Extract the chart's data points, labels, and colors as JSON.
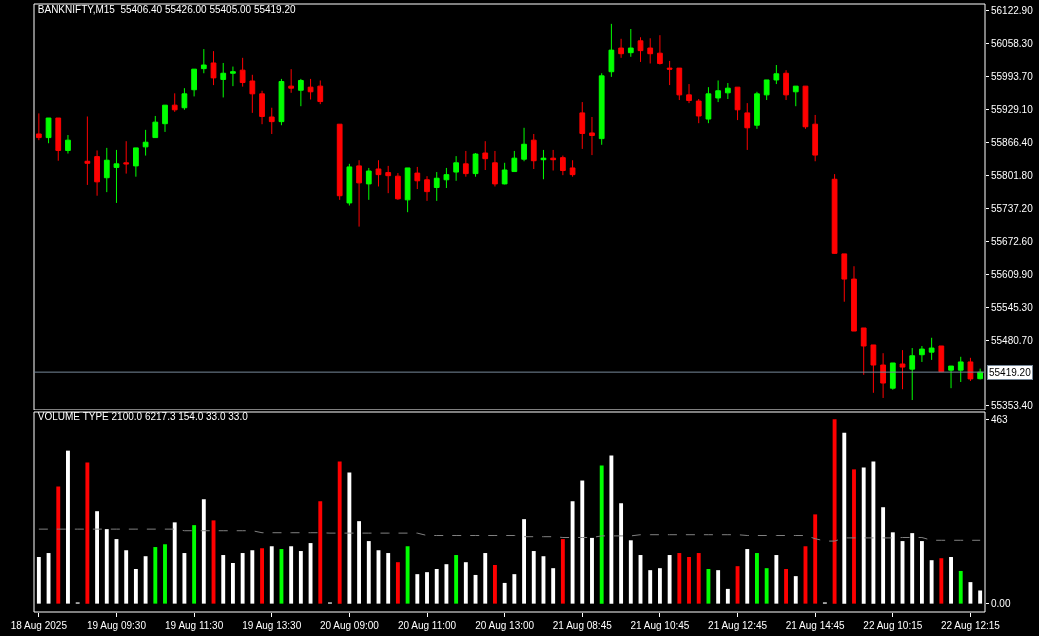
{
  "chart_data": [
    {
      "type": "candlestick",
      "title": "BANKNIFTY,M15  55406.40 55426.00 55405.00 55419.20",
      "categories": [
        null,
        null,
        null,
        null,
        null,
        null,
        null,
        null,
        null,
        null,
        null,
        null,
        null,
        null,
        null,
        null,
        null,
        null,
        null,
        null,
        null,
        null,
        null,
        null,
        null,
        null,
        null,
        null,
        null,
        null,
        null,
        null,
        null,
        null,
        null,
        null,
        null,
        null,
        null,
        null,
        null,
        null,
        null,
        null,
        null,
        null,
        null,
        null,
        null,
        null,
        null,
        null,
        null,
        null,
        null,
        null,
        null,
        null,
        null,
        null,
        null,
        null,
        null,
        null,
        null,
        null,
        null,
        null,
        null,
        null,
        null,
        null,
        null,
        null,
        null,
        null,
        null,
        null,
        null,
        null,
        null,
        null,
        null,
        null,
        null,
        null,
        null,
        null,
        null,
        null,
        null,
        null,
        null,
        null,
        null,
        null,
        null,
        null
      ],
      "ohlc": [
        [
          55882,
          55922,
          55870,
          55875
        ],
        [
          55875,
          55913,
          55864,
          55913
        ],
        [
          55913,
          55913,
          55830,
          55850
        ],
        [
          55850,
          55880,
          55844,
          55870
        ],
        null,
        [
          55829,
          55916,
          55783,
          55825
        ],
        [
          55838,
          55850,
          55762,
          55789
        ],
        [
          55797,
          55855,
          55769,
          55831
        ],
        [
          55817,
          55851,
          55748,
          55824
        ],
        [
          55826,
          55868,
          55805,
          55824
        ],
        [
          55820,
          55855,
          55799,
          55855
        ],
        [
          55857,
          55890,
          55840,
          55866
        ],
        [
          55875,
          55917,
          55875,
          55905
        ],
        [
          55902,
          55938,
          55886,
          55938
        ],
        [
          55938,
          55961,
          55925,
          55929
        ],
        [
          55933,
          55971,
          55929,
          55960
        ],
        [
          55968,
          56008,
          55955,
          56008
        ],
        [
          56009,
          56047,
          56000,
          56016
        ],
        [
          56020,
          56043,
          55977,
          55991
        ],
        [
          55988,
          56020,
          55953,
          56000
        ],
        [
          56000,
          56013,
          55975,
          56003
        ],
        [
          56006,
          56030,
          55974,
          55982
        ],
        [
          55985,
          55997,
          55923,
          55960
        ],
        [
          55960,
          55966,
          55901,
          55916
        ],
        [
          55915,
          55933,
          55882,
          55906
        ],
        [
          55906,
          55989,
          55899,
          55984
        ],
        [
          55975,
          56008,
          55962,
          55971
        ],
        [
          55967,
          55989,
          55936,
          55986
        ],
        [
          55973,
          55989,
          55949,
          55964
        ],
        [
          55975,
          55986,
          55940,
          55945
        ],
        null,
        [
          55901,
          55901,
          55754,
          55762
        ],
        [
          55748,
          55824,
          55743,
          55818
        ],
        [
          55820,
          55831,
          55702,
          55787
        ],
        [
          55785,
          55816,
          55754,
          55810
        ],
        [
          55814,
          55831,
          55780,
          55803
        ],
        [
          55807,
          55820,
          55767,
          55801
        ],
        [
          55800,
          55806,
          55754,
          55756
        ],
        [
          55754,
          55816,
          55730,
          55816
        ],
        [
          55806,
          55818,
          55775,
          55791
        ],
        [
          55793,
          55800,
          55752,
          55770
        ],
        [
          55778,
          55808,
          55752,
          55796
        ],
        [
          55793,
          55816,
          55777,
          55803
        ],
        [
          55808,
          55839,
          55791,
          55826
        ],
        [
          55824,
          55849,
          55799,
          55805
        ],
        [
          55805,
          55845,
          55799,
          55843
        ],
        [
          55845,
          55868,
          55812,
          55834
        ],
        [
          55826,
          55849,
          55780,
          55785
        ],
        [
          55785,
          55826,
          55784,
          55812
        ],
        [
          55809,
          55849,
          55809,
          55835
        ],
        [
          55833,
          55894,
          55829,
          55862
        ],
        [
          55870,
          55882,
          55814,
          55830
        ],
        [
          55832,
          55851,
          55794,
          55835
        ],
        [
          55835,
          55851,
          55811,
          55832
        ],
        [
          55836,
          55840,
          55802,
          55811
        ],
        [
          55816,
          55831,
          55799,
          55803
        ],
        [
          55923,
          55944,
          55853,
          55883
        ],
        [
          55884,
          55915,
          55841,
          55879
        ],
        [
          55873,
          56000,
          55861,
          55995
        ],
        [
          56003,
          56096,
          55993,
          56045
        ],
        [
          56049,
          56067,
          56030,
          56038
        ],
        [
          56040,
          56086,
          56032,
          56049
        ],
        [
          56063,
          56070,
          56022,
          56044
        ],
        [
          56049,
          56068,
          56019,
          56038
        ],
        [
          56039,
          56074,
          56017,
          56019
        ],
        [
          56010,
          56024,
          55977,
          56008
        ],
        [
          56010,
          56010,
          55948,
          55958
        ],
        [
          55958,
          55979,
          55942,
          55947
        ],
        [
          55946,
          55950,
          55903,
          55917
        ],
        [
          55911,
          55973,
          55903,
          55960
        ],
        [
          55952,
          55986,
          55944,
          55966
        ],
        [
          55962,
          55981,
          55950,
          55971
        ],
        [
          55973,
          55973,
          55909,
          55929
        ],
        [
          55923,
          55942,
          55851,
          55894
        ],
        [
          55899,
          55964,
          55892,
          55960
        ],
        [
          55958,
          55987,
          55948,
          55987
        ],
        [
          55987,
          56016,
          55979,
          55999
        ],
        [
          56000,
          56006,
          55948,
          55958
        ],
        [
          55964,
          55975,
          55936,
          55975
        ],
        [
          55975,
          55975,
          55892,
          55896
        ],
        [
          55901,
          55919,
          55829,
          55841
        ],
        null,
        [
          55794,
          55804,
          55649,
          55650
        ],
        [
          55649,
          55649,
          55556,
          55600
        ],
        [
          55600,
          55625,
          55499,
          55499
        ],
        [
          55505,
          55505,
          55414,
          55470
        ],
        [
          55472,
          55472,
          55379,
          55433
        ],
        [
          55433,
          55456,
          55369,
          55398
        ],
        [
          55388,
          55437,
          55385,
          55437
        ],
        [
          55435,
          55462,
          55386,
          55429
        ],
        [
          55425,
          55466,
          55365,
          55451
        ],
        [
          55453,
          55470,
          55439,
          55464
        ],
        [
          55458,
          55486,
          55443,
          55466
        ],
        [
          55470,
          55470,
          55420,
          55420
        ],
        [
          55423,
          55431,
          55388,
          55431
        ],
        [
          55423,
          55449,
          55400,
          55439
        ],
        [
          55439,
          55447,
          55402,
          55406
        ],
        [
          55406.4,
          55426,
          55405,
          55419.2
        ]
      ],
      "colors": [
        "#ff0000",
        "#00ff00",
        "#ff0000",
        "#00ff00",
        null,
        "#ff0000",
        "#ff0000",
        "#00ff00",
        "#00ff00",
        "#ff0000",
        "#00ff00",
        "#00ff00",
        "#00ff00",
        "#00ff00",
        "#ff0000",
        "#00ff00",
        "#00ff00",
        "#00ff00",
        "#ff0000",
        "#00ff00",
        "#00ff00",
        "#ff0000",
        "#ff0000",
        "#ff0000",
        "#ff0000",
        "#00ff00",
        "#ff0000",
        "#00ff00",
        "#ff0000",
        "#ff0000",
        null,
        "#ff0000",
        "#00ff00",
        "#ff0000",
        "#00ff00",
        "#ff0000",
        "#ff0000",
        "#ff0000",
        "#00ff00",
        "#ff0000",
        "#ff0000",
        "#00ff00",
        "#00ff00",
        "#00ff00",
        "#ff0000",
        "#00ff00",
        "#ff0000",
        "#ff0000",
        "#00ff00",
        "#00ff00",
        "#00ff00",
        "#ff0000",
        "#00ff00",
        "#ff0000",
        "#ff0000",
        "#ff0000",
        "#ff0000",
        "#ff0000",
        "#00ff00",
        "#00ff00",
        "#ff0000",
        "#00ff00",
        "#ff0000",
        "#ff0000",
        "#ff0000",
        "#ff0000",
        "#ff0000",
        "#ff0000",
        "#ff0000",
        "#00ff00",
        "#00ff00",
        "#00ff00",
        "#ff0000",
        "#ff0000",
        "#00ff00",
        "#00ff00",
        "#00ff00",
        "#ff0000",
        "#00ff00",
        "#ff0000",
        "#ff0000",
        null,
        "#ff0000",
        "#ff0000",
        "#ff0000",
        "#ff0000",
        "#ff0000",
        "#ff0000",
        "#00ff00",
        "#ff0000",
        "#00ff00",
        "#00ff00",
        "#00ff00",
        "#ff0000",
        "#00ff00",
        "#00ff00",
        "#ff0000",
        "#00ff00"
      ],
      "ylim": [
        55345.6,
        56134.6
      ],
      "yticks": [
        {
          "value": 56122.9,
          "label": "56122.90"
        },
        {
          "value": 56058.3,
          "label": "56058.30"
        },
        {
          "value": 55993.7,
          "label": "55993.70"
        },
        {
          "value": 55929.1,
          "label": "55929.10"
        },
        {
          "value": 55866.4,
          "label": "55866.40"
        },
        {
          "value": 55801.8,
          "label": "55801.80"
        },
        {
          "value": 55737.2,
          "label": "55737.20"
        },
        {
          "value": 55672.6,
          "label": "55672.60"
        },
        {
          "value": 55609.9,
          "label": "55609.90"
        },
        {
          "value": 55545.3,
          "label": "55545.30"
        },
        {
          "value": 55480.7,
          "label": "55480.70"
        },
        {
          "value": 55353.4,
          "label": "55353.40"
        }
      ],
      "ref_lines": [
        {
          "axis": "y",
          "value": 55419.2,
          "label": "55419.20",
          "color": "#778899"
        }
      ]
    },
    {
      "type": "bar",
      "title": "VOLUME TYPE 2100.0 6217.3 154.0 33.0 33.0",
      "categories": [
        "18 Aug 2025",
        null,
        null,
        null,
        null,
        null,
        null,
        null,
        "19 Aug 09:30",
        null,
        null,
        null,
        null,
        null,
        null,
        null,
        "19 Aug 11:30",
        null,
        null,
        null,
        null,
        null,
        null,
        null,
        "19 Aug 13:30",
        null,
        null,
        null,
        null,
        null,
        null,
        null,
        "20 Aug 09:00",
        null,
        null,
        null,
        null,
        null,
        null,
        null,
        "20 Aug 11:00",
        null,
        null,
        null,
        null,
        null,
        null,
        null,
        "20 Aug 13:00",
        null,
        null,
        null,
        null,
        null,
        null,
        null,
        "21 Aug 08:45",
        null,
        null,
        null,
        null,
        null,
        null,
        null,
        "21 Aug 10:45",
        null,
        null,
        null,
        null,
        null,
        null,
        null,
        "21 Aug 12:45",
        null,
        null,
        null,
        null,
        null,
        null,
        null,
        "21 Aug 14:45",
        null,
        null,
        null,
        null,
        null,
        null,
        null,
        "22 Aug 10:15",
        null,
        null,
        null,
        null,
        null,
        null,
        null,
        "22 Aug 12:15",
        null
      ],
      "series": [
        {
          "type": "bar",
          "values": [
            117,
            127,
            294,
            384,
            3,
            354,
            232,
            187,
            162,
            134,
            87,
            119,
            142,
            149,
            204,
            127,
            197,
            262,
            209,
            122,
            102,
            127,
            134,
            139,
            144,
            137,
            144,
            132,
            152,
            257,
            3,
            357,
            329,
            207,
            157,
            134,
            127,
            104,
            144,
            74,
            79,
            87,
            99,
            122,
            104,
            72,
            127,
            97,
            52,
            74,
            212,
            132,
            119,
            89,
            162,
            257,
            309,
            165,
            347,
            372,
            252,
            159,
            122,
            84,
            89,
            122,
            127,
            117,
            127,
            87,
            84,
            37,
            94,
            137,
            127,
            89,
            122,
            87,
            69,
            144,
            224,
            3,
            463,
            429,
            337,
            342,
            357,
            242,
            179,
            157,
            177,
            157,
            109,
            114,
            117,
            82,
            54,
            33
          ],
          "colors": [
            "#ffffff",
            "#ffffff",
            "#ff0000",
            "#ffffff",
            "#ffffff",
            "#ff0000",
            "#ffffff",
            "#ffffff",
            "#ffffff",
            "#ffffff",
            "#ffffff",
            "#ffffff",
            "#00ff00",
            "#00ff00",
            "#ffffff",
            "#ffffff",
            "#00ff00",
            "#ffffff",
            "#ff0000",
            "#ffffff",
            "#ffffff",
            "#ffffff",
            "#ffffff",
            "#ff0000",
            "#ffffff",
            "#00ff00",
            "#ffffff",
            "#ffffff",
            "#ffffff",
            "#ff0000",
            "#ffffff",
            "#ff0000",
            "#ffffff",
            "#ffffff",
            "#ffffff",
            "#ffffff",
            "#ffffff",
            "#ff0000",
            "#00ff00",
            "#ffffff",
            "#ffffff",
            "#ffffff",
            "#ffffff",
            "#00ff00",
            "#ffffff",
            "#ffffff",
            "#ffffff",
            "#ff0000",
            "#ffffff",
            "#ffffff",
            "#ffffff",
            "#ffffff",
            "#ffffff",
            "#ffffff",
            "#ff0000",
            "#ffffff",
            "#ffffff",
            "#ffffff",
            "#00ff00",
            "#ffffff",
            "#ffffff",
            "#ffffff",
            "#ffffff",
            "#ffffff",
            "#ffffff",
            "#ffffff",
            "#ff0000",
            "#ff0000",
            "#ff0000",
            "#00ff00",
            "#ffffff",
            "#ffffff",
            "#ff0000",
            "#ffffff",
            "#00ff00",
            "#00ff00",
            "#ffffff",
            "#ff0000",
            "#ffffff",
            "#ff0000",
            "#ff0000",
            "#ffffff",
            "#ff0000",
            "#ffffff",
            "#ff0000",
            "#ffffff",
            "#ffffff",
            "#ffffff",
            "#ffffff",
            "#ffffff",
            "#ffffff",
            "#ffffff",
            "#ffffff",
            "#ff0000",
            "#ffffff",
            "#00ff00",
            "#ffffff",
            "#ffffff"
          ]
        },
        {
          "type": "line",
          "color": "#808080",
          "line_style": "dashed",
          "values": [
            187,
            187,
            187,
            187,
            187,
            187,
            187,
            187,
            187,
            187,
            187,
            187,
            187,
            187,
            187,
            183,
            183,
            183,
            183,
            183,
            183,
            183,
            183,
            178,
            178,
            178,
            178,
            178,
            178,
            178,
            177,
            177,
            177,
            177,
            177,
            177,
            177,
            177,
            177,
            177,
            171,
            171,
            171,
            171,
            171,
            171,
            171,
            171,
            171,
            171,
            168,
            168,
            168,
            168,
            166,
            166,
            166,
            166,
            170,
            170,
            170,
            170,
            173,
            173,
            173,
            173,
            173,
            173,
            173,
            173,
            173,
            173,
            173,
            171,
            171,
            171,
            171,
            171,
            171,
            171,
            163,
            157,
            157,
            165,
            165,
            165,
            165,
            165,
            165,
            166,
            166,
            166,
            159,
            159,
            159,
            159,
            159,
            159
          ]
        }
      ],
      "ylim": [
        -21,
        481
      ],
      "yticks": [
        {
          "value": 0,
          "label": "0.00"
        },
        463
      ]
    }
  ]
}
